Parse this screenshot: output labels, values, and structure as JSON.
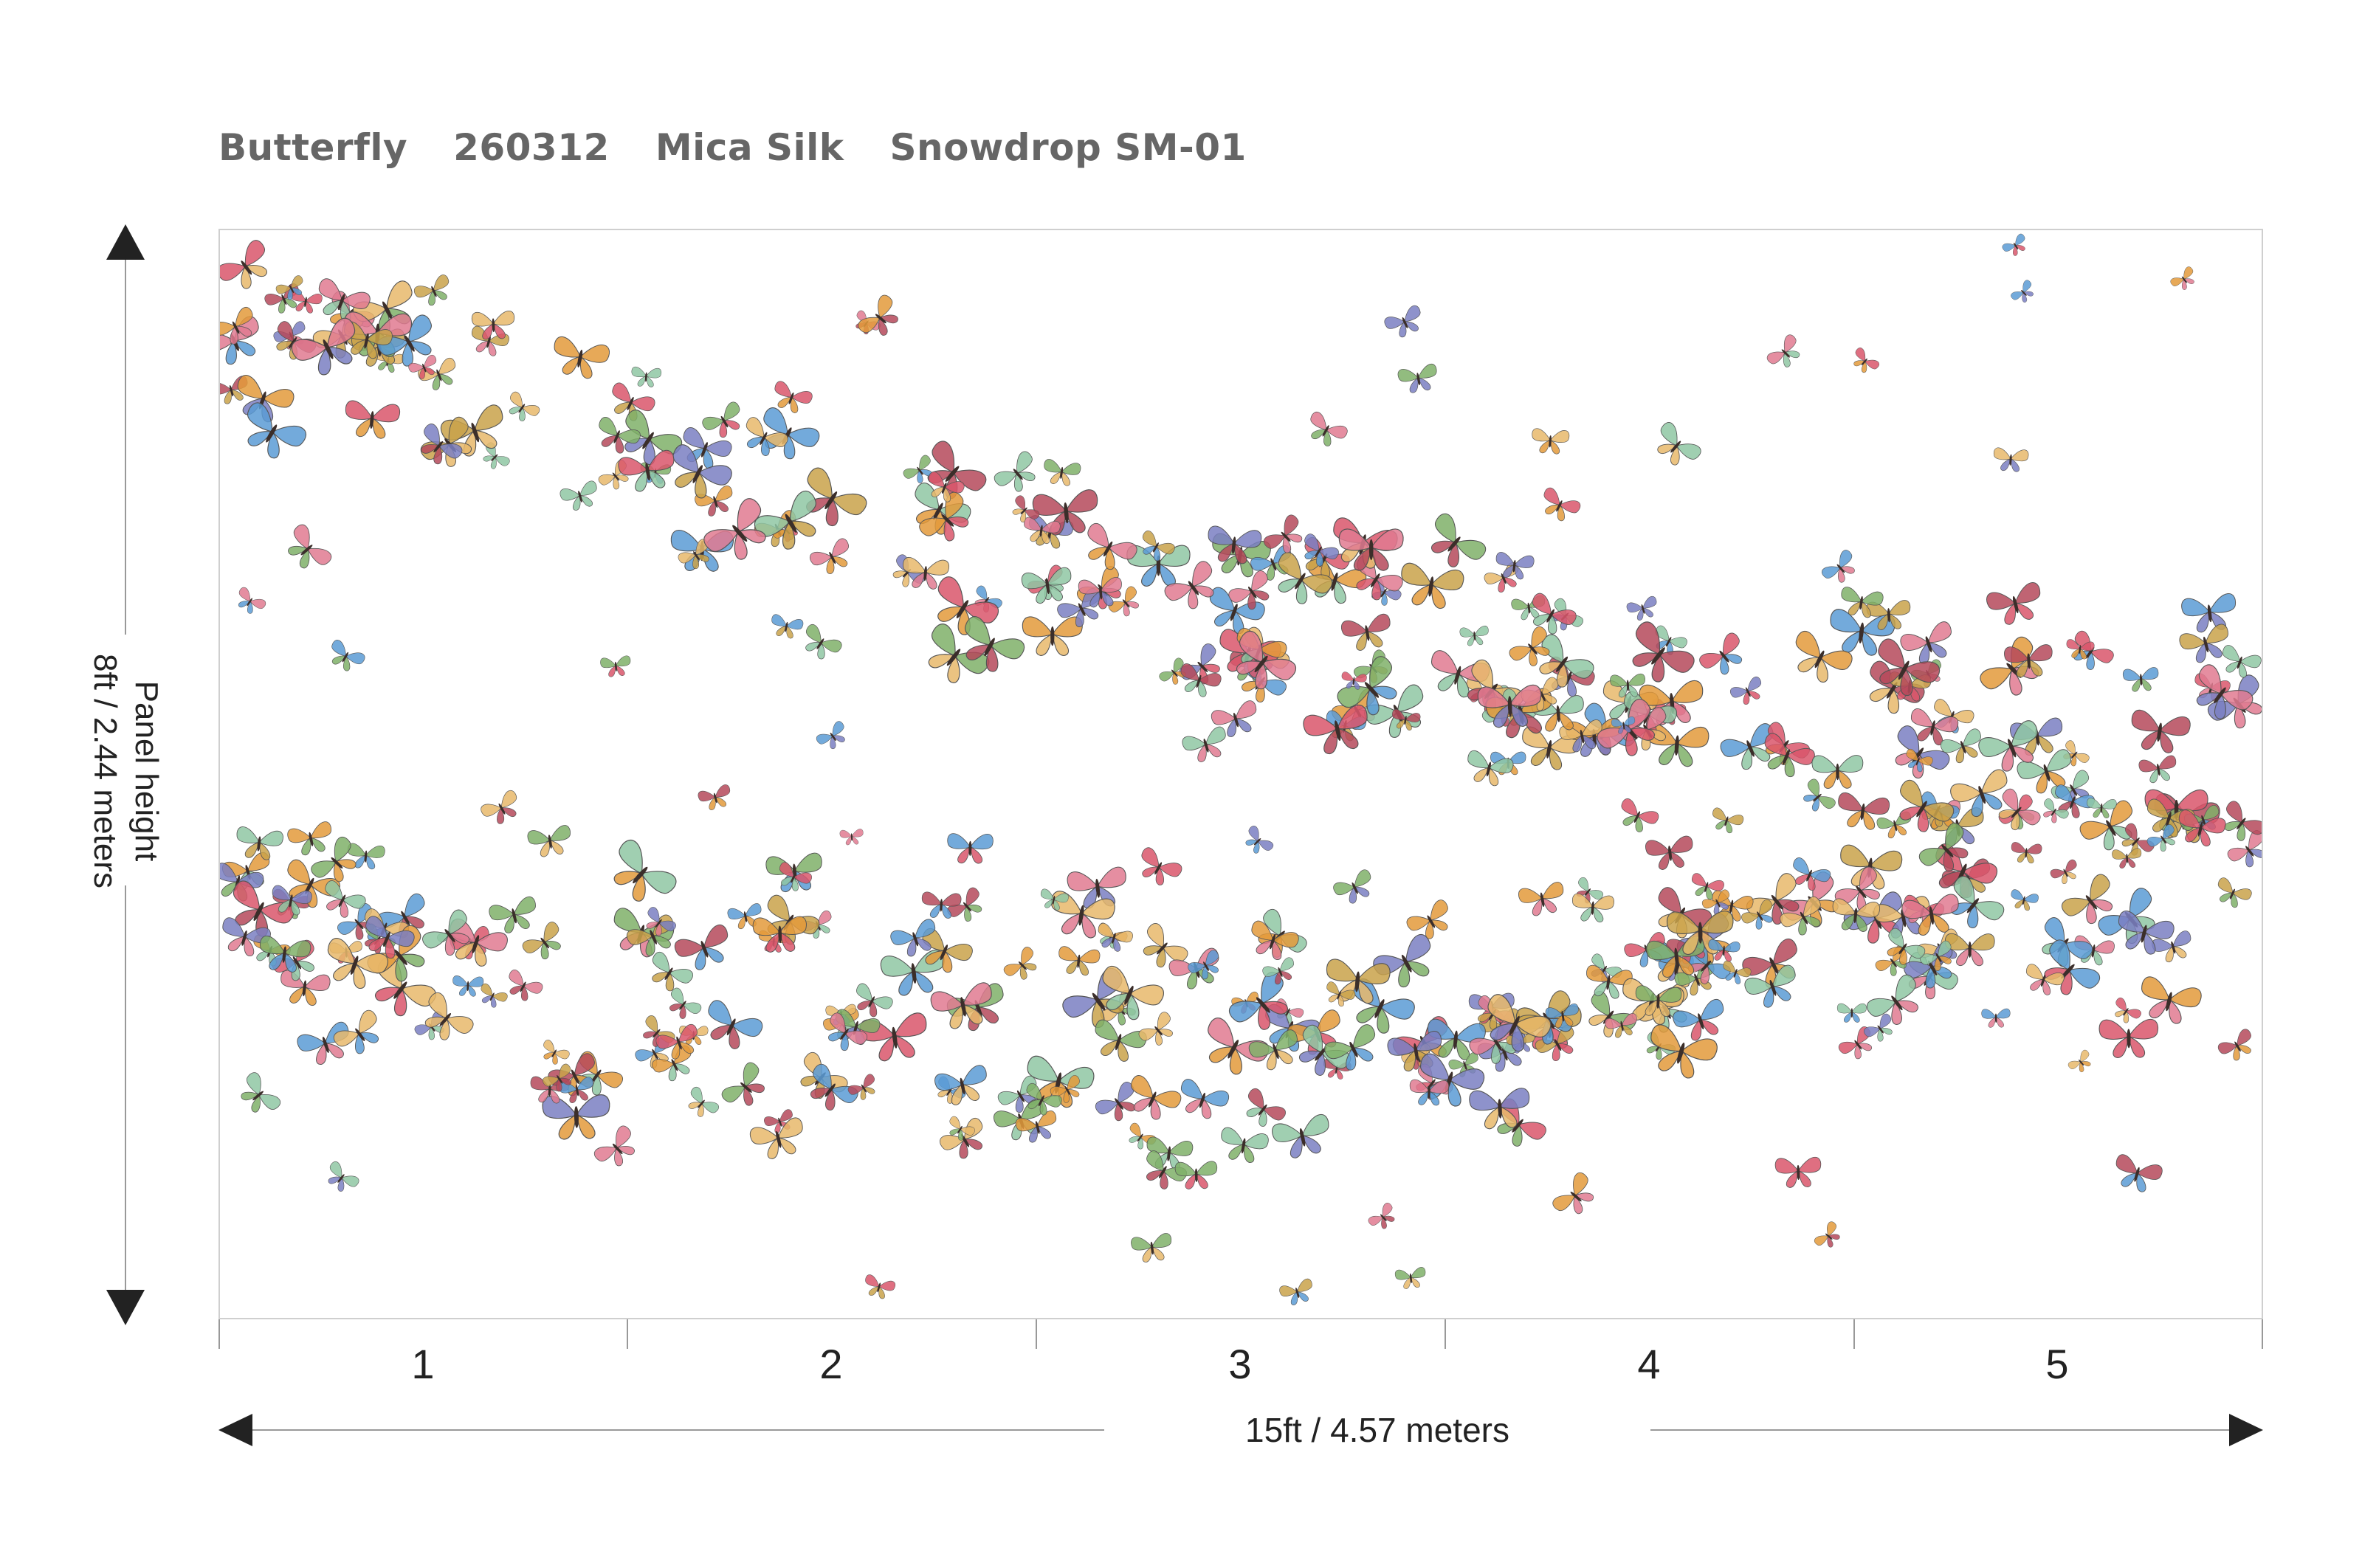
{
  "header": {
    "pattern": "Butterfly",
    "code": "260312",
    "material": "Mica Silk",
    "colorway": "Snowdrop SM-01"
  },
  "height_dimension": {
    "line1": "Panel height",
    "line2": "8ft / 2.44 meters"
  },
  "width_dimension": {
    "label": "15ft  / 4.57 meters"
  },
  "panels": [
    "1",
    "2",
    "3",
    "4",
    "5"
  ],
  "colors": {
    "border": "#cfcfcf",
    "arrow": "#222222",
    "butterflies": [
      "#d9566b",
      "#e39a3b",
      "#7fb069",
      "#7a7fc2",
      "#e07a91",
      "#c9a24a",
      "#5a9bd5",
      "#b5495b",
      "#8fc7a3",
      "#e8b86b"
    ]
  },
  "butterfly_icon": "butterfly-icon"
}
